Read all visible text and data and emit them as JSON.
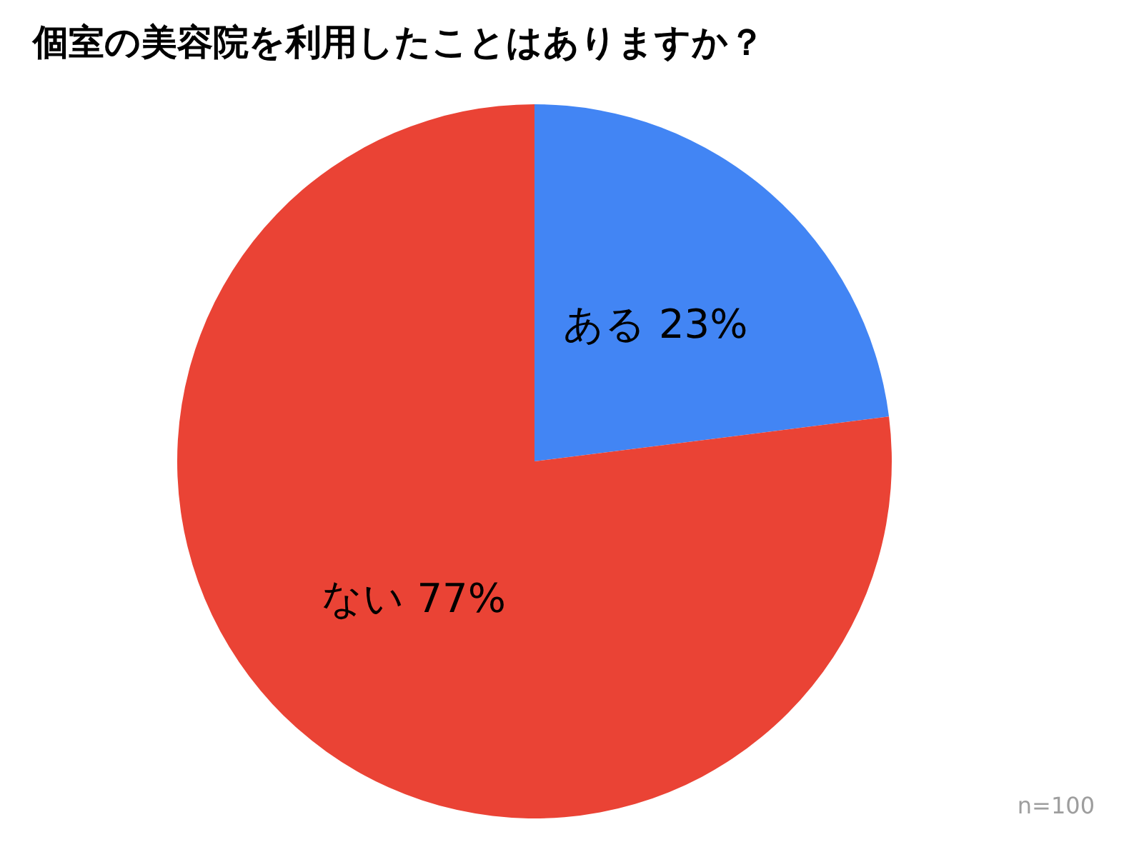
{
  "chart_data": {
    "type": "pie",
    "title": "個室の美容院を利用したことはありますか？",
    "categories": [
      "ある",
      "ない"
    ],
    "values": [
      23,
      77
    ],
    "colors": [
      "#4285f4",
      "#ea4335"
    ],
    "value_labels": [
      "23%",
      "77%"
    ],
    "annotations": [
      "n=100"
    ],
    "legend": false
  }
}
